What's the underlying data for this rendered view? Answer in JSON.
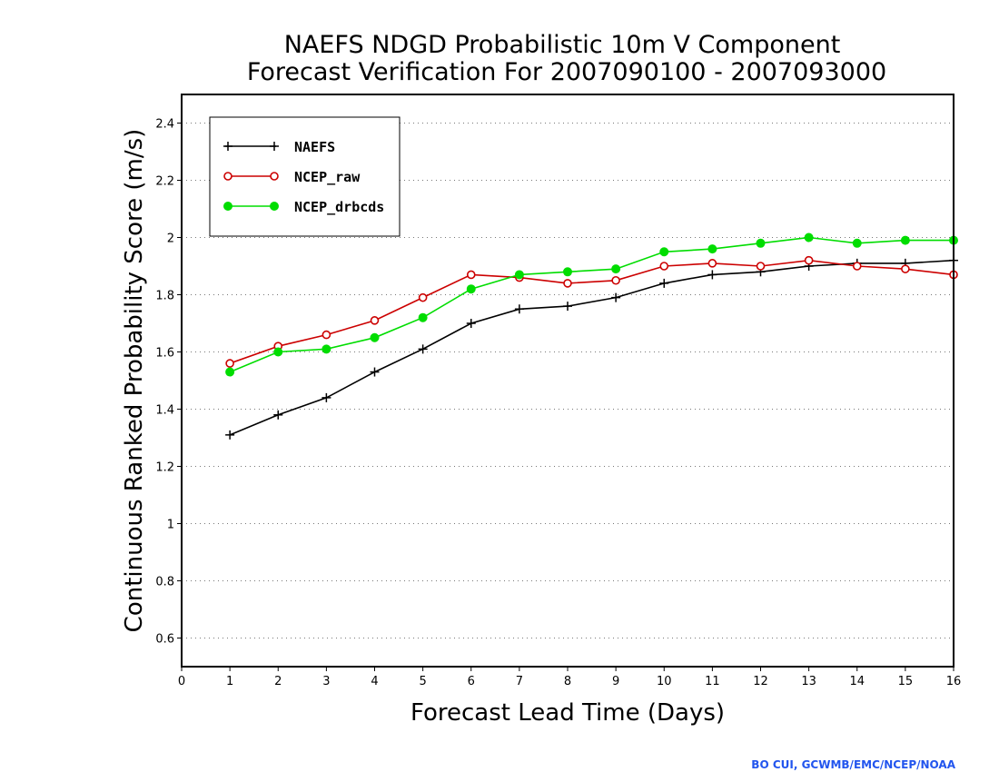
{
  "chart_data": {
    "type": "line",
    "title_line1": "NAEFS NDGD Probabilistic 10m V Component",
    "title_line2": "Forecast Verification For 2007090100 - 2007093000",
    "xlabel": "Forecast Lead Time (Days)",
    "ylabel": "Continuous Ranked Probability Score (m/s)",
    "xlim": [
      0,
      16
    ],
    "ylim": [
      0.5,
      2.5
    ],
    "x_ticks": [
      0,
      1,
      2,
      3,
      4,
      5,
      6,
      7,
      8,
      9,
      10,
      11,
      12,
      13,
      14,
      15,
      16
    ],
    "y_ticks": [
      0.6,
      0.8,
      1,
      1.2,
      1.4,
      1.6,
      1.8,
      2,
      2.2,
      2.4
    ],
    "y_tick_labels": [
      "0.6",
      "0.8",
      "1",
      "1.2",
      "1.4",
      "1.6",
      "1.8",
      "2",
      "2.2",
      "2.4"
    ],
    "grid": "horizontal-dotted",
    "legend_position": "top-left",
    "x": [
      1,
      2,
      3,
      4,
      5,
      6,
      7,
      8,
      9,
      10,
      11,
      12,
      13,
      14,
      15,
      16
    ],
    "series": [
      {
        "name": "NAEFS",
        "color": "#000000",
        "marker": "plus",
        "values": [
          1.31,
          1.38,
          1.44,
          1.53,
          1.61,
          1.7,
          1.75,
          1.76,
          1.79,
          1.84,
          1.87,
          1.88,
          1.9,
          1.91,
          1.91,
          1.92
        ]
      },
      {
        "name": "NCEP_raw",
        "color": "#cc0000",
        "marker": "open-circle",
        "values": [
          1.56,
          1.62,
          1.66,
          1.71,
          1.79,
          1.87,
          1.86,
          1.84,
          1.85,
          1.9,
          1.91,
          1.9,
          1.92,
          1.9,
          1.89,
          1.87
        ]
      },
      {
        "name": "NCEP_drbcds",
        "color": "#00dd00",
        "marker": "filled-circle",
        "values": [
          1.53,
          1.6,
          1.61,
          1.65,
          1.72,
          1.82,
          1.87,
          1.88,
          1.89,
          1.95,
          1.96,
          1.98,
          2.0,
          1.98,
          1.99,
          1.99
        ]
      }
    ]
  },
  "credit": {
    "text": "BO CUI, GCWMB/EMC/NCEP/NOAA",
    "color": "#2255ee"
  }
}
